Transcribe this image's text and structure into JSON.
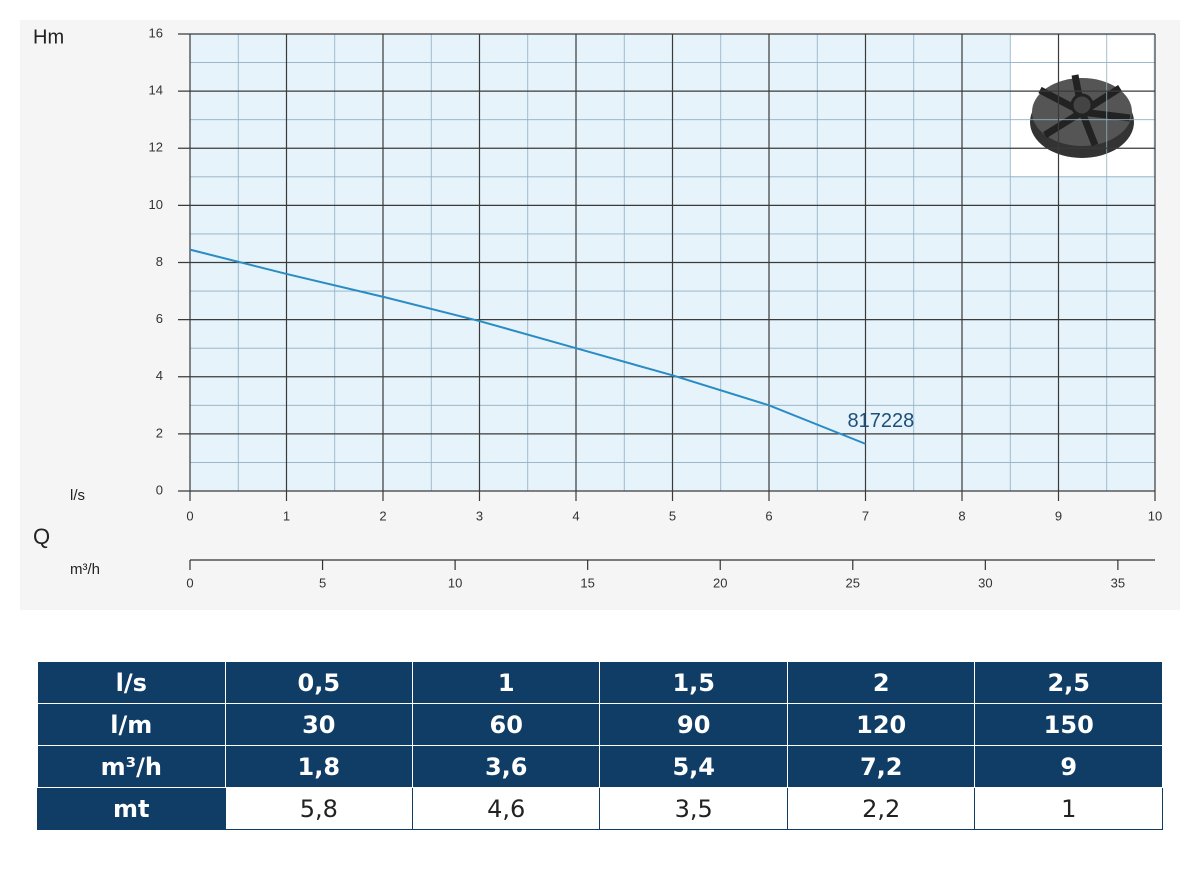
{
  "chart_data": {
    "type": "line",
    "y_label": "Hm",
    "x_label": "l/s",
    "q_label": "Q",
    "x2_label": "m³/h",
    "x": [
      0,
      1,
      2,
      3,
      4,
      5,
      6,
      7
    ],
    "series": [
      {
        "name": "817228",
        "color": "#2a8cc4",
        "values": [
          8.45,
          7.6,
          6.8,
          5.95,
          5.0,
          4.05,
          3.0,
          1.65
        ]
      }
    ],
    "xlim": [
      0,
      10
    ],
    "xticks": [
      0,
      1,
      2,
      3,
      4,
      5,
      6,
      7,
      8,
      9,
      10
    ],
    "ylim": [
      0,
      16
    ],
    "yticks": [
      0,
      2,
      4,
      6,
      8,
      10,
      12,
      14,
      16
    ],
    "x2lim": [
      0,
      36.4
    ],
    "x2ticks": [
      0,
      5,
      10,
      15,
      20,
      25,
      30,
      35
    ],
    "grid": true
  },
  "table": {
    "rows": [
      [
        "l/s",
        "0,5",
        "1",
        "1,5",
        "2",
        "2,5"
      ],
      [
        "l/m",
        "30",
        "60",
        "90",
        "120",
        "150"
      ],
      [
        "m³/h",
        "1,8",
        "3,6",
        "5,4",
        "7,2",
        "9"
      ],
      [
        "mt",
        "5,8",
        "4,6",
        "3,5",
        "2,2",
        "1"
      ]
    ]
  }
}
